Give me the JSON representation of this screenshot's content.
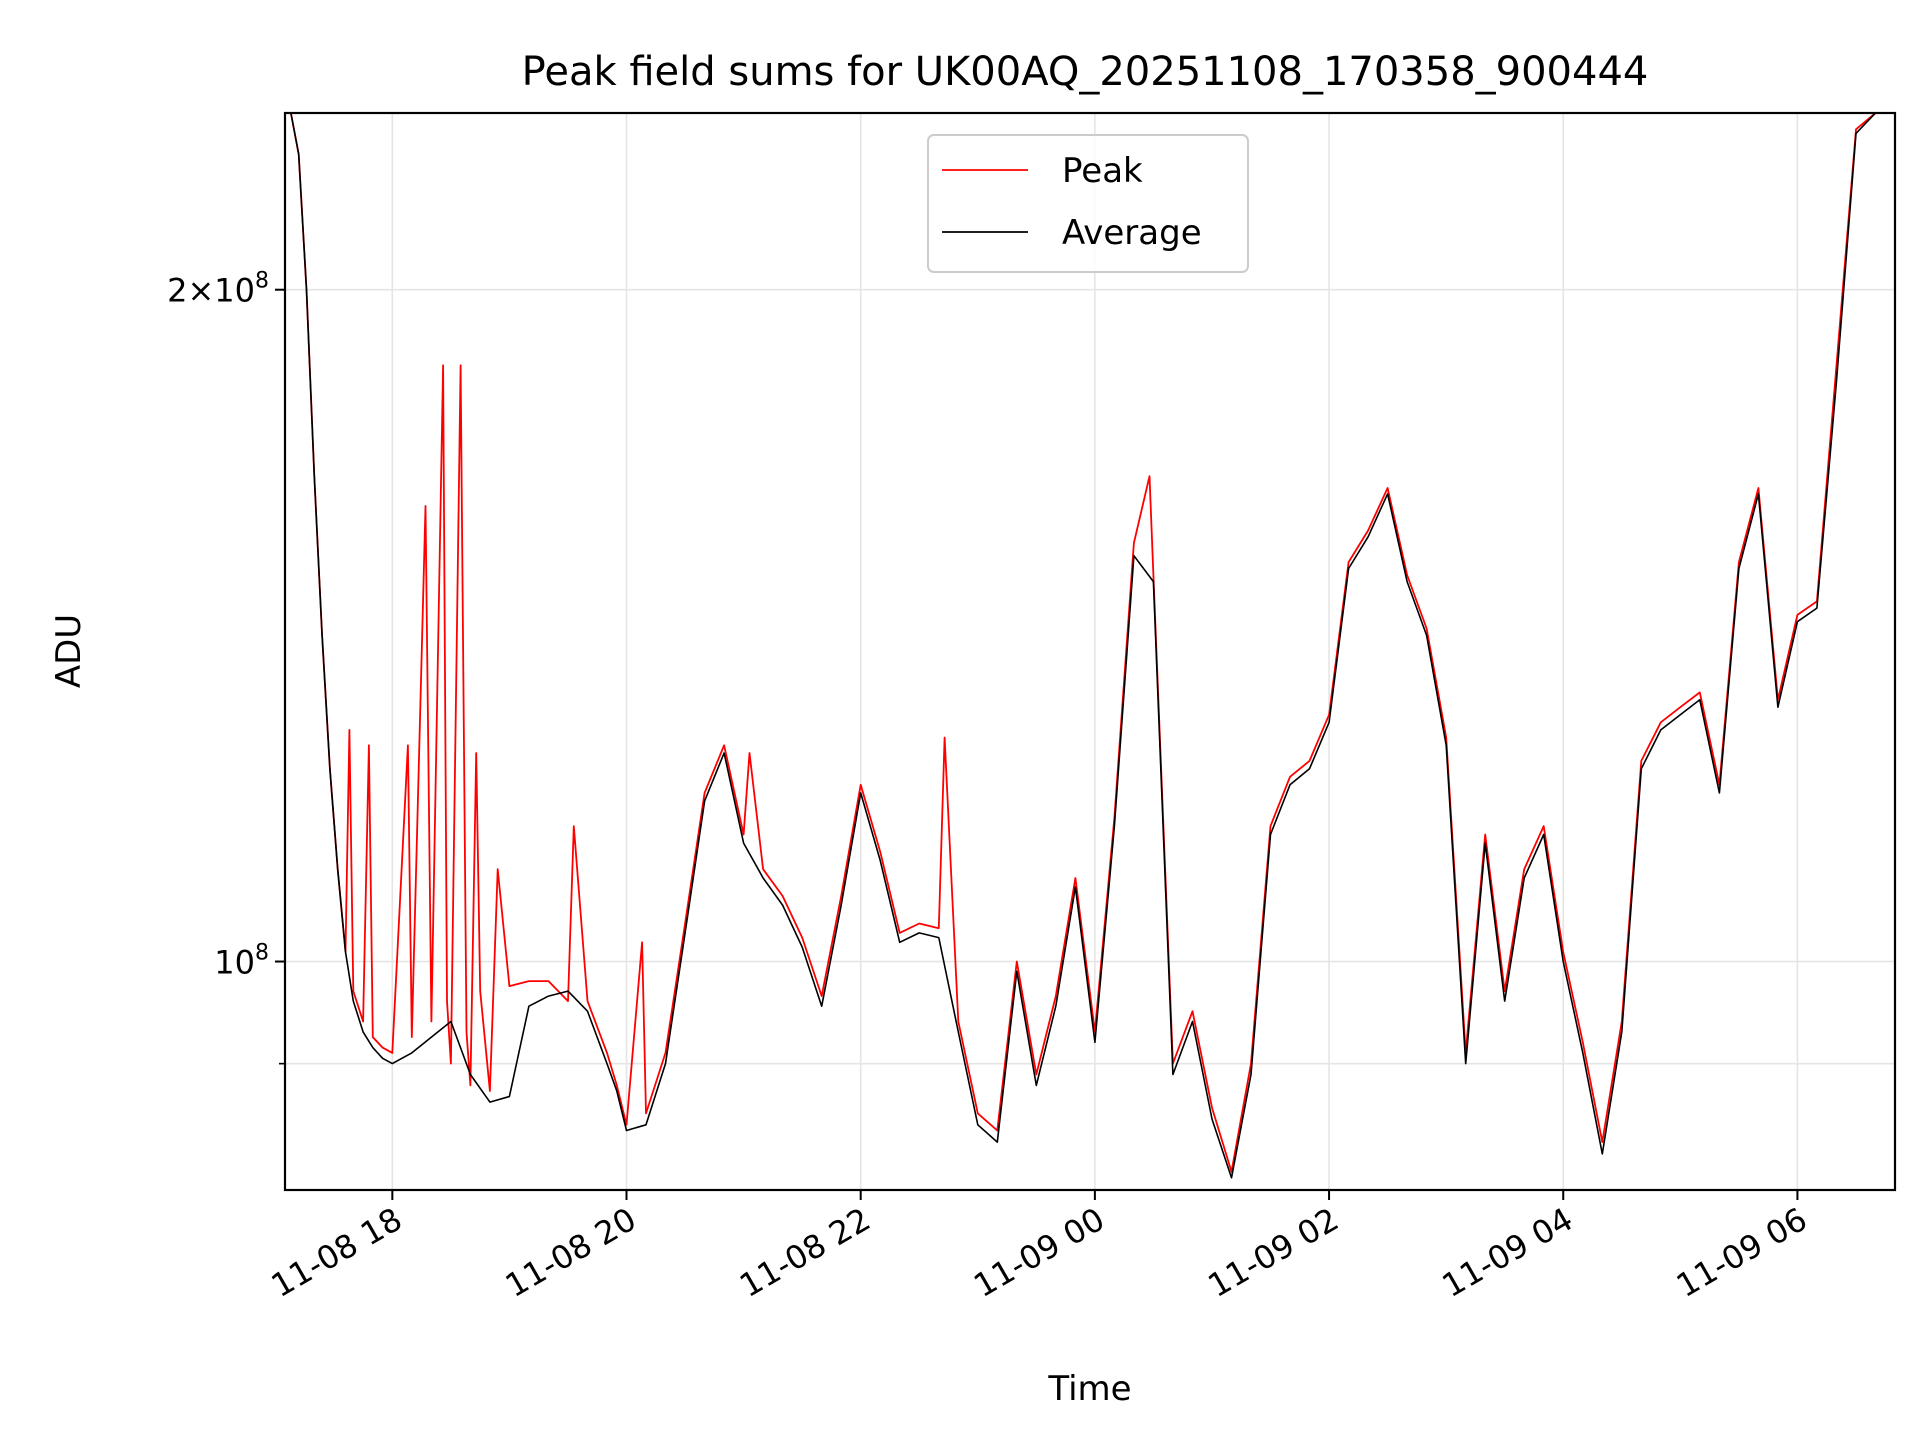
{
  "chart_data": {
    "type": "line",
    "title": "Peak field sums for UK00AQ_20251108_170358_900444",
    "xlabel": "Time",
    "ylabel": "ADU",
    "y_scale": "log",
    "x_range": [
      "2025-11-08 17:05",
      "2025-11-09 06:50"
    ],
    "ylim": [
      79000000,
      240000000
    ],
    "x_ticks": [
      {
        "value": "2025-11-08 18:00",
        "label": "11-08 18"
      },
      {
        "value": "2025-11-08 20:00",
        "label": "11-08 20"
      },
      {
        "value": "2025-11-08 22:00",
        "label": "11-08 22"
      },
      {
        "value": "2025-11-09 00:00",
        "label": "11-09 00"
      },
      {
        "value": "2025-11-09 02:00",
        "label": "11-09 02"
      },
      {
        "value": "2025-11-09 04:00",
        "label": "11-09 04"
      },
      {
        "value": "2025-11-09 06:00",
        "label": "11-09 06"
      }
    ],
    "y_ticks": [
      {
        "value": 100000000,
        "base": "10",
        "exp": "8",
        "coef": ""
      },
      {
        "value": 200000000,
        "base": "10",
        "exp": "8",
        "coef": "2×"
      }
    ],
    "y_minor_gridlines": [
      90000000
    ],
    "grid": true,
    "legend": {
      "position": "top-center",
      "entries": [
        "Peak",
        "Average"
      ]
    },
    "colors": {
      "Peak": "#ff0000",
      "Average": "#000000"
    },
    "series": [
      {
        "name": "Average",
        "x": [
          "2025-11-08 17:08",
          "2025-11-08 17:12",
          "2025-11-08 17:16",
          "2025-11-08 17:20",
          "2025-11-08 17:24",
          "2025-11-08 17:28",
          "2025-11-08 17:32",
          "2025-11-08 17:36",
          "2025-11-08 17:40",
          "2025-11-08 17:45",
          "2025-11-08 17:50",
          "2025-11-08 17:55",
          "2025-11-08 18:00",
          "2025-11-08 18:10",
          "2025-11-08 18:20",
          "2025-11-08 18:30",
          "2025-11-08 18:40",
          "2025-11-08 18:50",
          "2025-11-08 19:00",
          "2025-11-08 19:10",
          "2025-11-08 19:20",
          "2025-11-08 19:30",
          "2025-11-08 19:40",
          "2025-11-08 19:50",
          "2025-11-08 19:55",
          "2025-11-08 20:00",
          "2025-11-08 20:10",
          "2025-11-08 20:20",
          "2025-11-08 20:30",
          "2025-11-08 20:40",
          "2025-11-08 20:50",
          "2025-11-08 21:00",
          "2025-11-08 21:10",
          "2025-11-08 21:20",
          "2025-11-08 21:30",
          "2025-11-08 21:40",
          "2025-11-08 21:50",
          "2025-11-08 22:00",
          "2025-11-08 22:10",
          "2025-11-08 22:20",
          "2025-11-08 22:30",
          "2025-11-08 22:40",
          "2025-11-08 22:50",
          "2025-11-08 23:00",
          "2025-11-08 23:10",
          "2025-11-08 23:20",
          "2025-11-08 23:30",
          "2025-11-08 23:40",
          "2025-11-08 23:50",
          "2025-11-09 00:00",
          "2025-11-09 00:10",
          "2025-11-09 00:20",
          "2025-11-09 00:30",
          "2025-11-09 00:40",
          "2025-11-09 00:50",
          "2025-11-09 01:00",
          "2025-11-09 01:10",
          "2025-11-09 01:20",
          "2025-11-09 01:30",
          "2025-11-09 01:40",
          "2025-11-09 01:50",
          "2025-11-09 02:00",
          "2025-11-09 02:10",
          "2025-11-09 02:20",
          "2025-11-09 02:30",
          "2025-11-09 02:40",
          "2025-11-09 02:50",
          "2025-11-09 03:00",
          "2025-11-09 03:10",
          "2025-11-09 03:20",
          "2025-11-09 03:30",
          "2025-11-09 03:40",
          "2025-11-09 03:50",
          "2025-11-09 04:00",
          "2025-11-09 04:10",
          "2025-11-09 04:20",
          "2025-11-09 04:30",
          "2025-11-09 04:40",
          "2025-11-09 04:50",
          "2025-11-09 05:00",
          "2025-11-09 05:10",
          "2025-11-09 05:20",
          "2025-11-09 05:30",
          "2025-11-09 05:40",
          "2025-11-09 05:50",
          "2025-11-09 06:00",
          "2025-11-09 06:10",
          "2025-11-09 06:20",
          "2025-11-09 06:30",
          "2025-11-09 06:40",
          "2025-11-09 06:45"
        ],
        "y": [
          240000000,
          230000000,
          200000000,
          165000000,
          140000000,
          122000000,
          110000000,
          101000000,
          96000000,
          93000000,
          91500000,
          90500000,
          90000000,
          91000000,
          92500000,
          94000000,
          89000000,
          86500000,
          87000000,
          95500000,
          96500000,
          97000000,
          95000000,
          90000000,
          87500000,
          84000000,
          84500000,
          90000000,
          103000000,
          118000000,
          124000000,
          113000000,
          109000000,
          106000000,
          101500000,
          95500000,
          106000000,
          119000000,
          111000000,
          102000000,
          103000000,
          102500000,
          93000000,
          84500000,
          83000000,
          99000000,
          88000000,
          95500000,
          108000000,
          92000000,
          115000000,
          152000000,
          148000000,
          89000000,
          94000000,
          85000000,
          80000000,
          89000000,
          114000000,
          120000000,
          122000000,
          128000000,
          150000000,
          155000000,
          162000000,
          148000000,
          140000000,
          125000000,
          90000000,
          113000000,
          96000000,
          109000000,
          114000000,
          100000000,
          91000000,
          82000000,
          93000000,
          122000000,
          127000000,
          129000000,
          131000000,
          119000000,
          150000000,
          162000000,
          130000000,
          142000000,
          144000000,
          182000000,
          235000000,
          240000000,
          240000000
        ]
      },
      {
        "name": "Peak",
        "x": [
          "2025-11-08 17:08",
          "2025-11-08 17:12",
          "2025-11-08 17:16",
          "2025-11-08 17:20",
          "2025-11-08 17:24",
          "2025-11-08 17:28",
          "2025-11-08 17:32",
          "2025-11-08 17:36",
          "2025-11-08 17:38",
          "2025-11-08 17:40",
          "2025-11-08 17:45",
          "2025-11-08 17:48",
          "2025-11-08 17:50",
          "2025-11-08 17:55",
          "2025-11-08 18:00",
          "2025-11-08 18:08",
          "2025-11-08 18:10",
          "2025-11-08 18:17",
          "2025-11-08 18:20",
          "2025-11-08 18:26",
          "2025-11-08 18:28",
          "2025-11-08 18:30",
          "2025-11-08 18:35",
          "2025-11-08 18:38",
          "2025-11-08 18:40",
          "2025-11-08 18:43",
          "2025-11-08 18:45",
          "2025-11-08 18:50",
          "2025-11-08 18:54",
          "2025-11-08 19:00",
          "2025-11-08 19:10",
          "2025-11-08 19:20",
          "2025-11-08 19:30",
          "2025-11-08 19:33",
          "2025-11-08 19:40",
          "2025-11-08 19:50",
          "2025-11-08 19:55",
          "2025-11-08 20:00",
          "2025-11-08 20:08",
          "2025-11-08 20:10",
          "2025-11-08 20:20",
          "2025-11-08 20:30",
          "2025-11-08 20:40",
          "2025-11-08 20:50",
          "2025-11-08 21:00",
          "2025-11-08 21:03",
          "2025-11-08 21:10",
          "2025-11-08 21:20",
          "2025-11-08 21:30",
          "2025-11-08 21:40",
          "2025-11-08 21:50",
          "2025-11-08 22:00",
          "2025-11-08 22:10",
          "2025-11-08 22:20",
          "2025-11-08 22:30",
          "2025-11-08 22:40",
          "2025-11-08 22:43",
          "2025-11-08 22:50",
          "2025-11-08 23:00",
          "2025-11-08 23:10",
          "2025-11-08 23:20",
          "2025-11-08 23:30",
          "2025-11-08 23:40",
          "2025-11-08 23:50",
          "2025-11-09 00:00",
          "2025-11-09 00:10",
          "2025-11-09 00:20",
          "2025-11-09 00:28",
          "2025-11-09 00:30",
          "2025-11-09 00:40",
          "2025-11-09 00:50",
          "2025-11-09 01:00",
          "2025-11-09 01:10",
          "2025-11-09 01:20",
          "2025-11-09 01:30",
          "2025-11-09 01:40",
          "2025-11-09 01:50",
          "2025-11-09 02:00",
          "2025-11-09 02:10",
          "2025-11-09 02:20",
          "2025-11-09 02:30",
          "2025-11-09 02:40",
          "2025-11-09 02:50",
          "2025-11-09 03:00",
          "2025-11-09 03:10",
          "2025-11-09 03:20",
          "2025-11-09 03:30",
          "2025-11-09 03:40",
          "2025-11-09 03:50",
          "2025-11-09 04:00",
          "2025-11-09 04:10",
          "2025-11-09 04:20",
          "2025-11-09 04:30",
          "2025-11-09 04:40",
          "2025-11-09 04:50",
          "2025-11-09 05:00",
          "2025-11-09 05:10",
          "2025-11-09 05:20",
          "2025-11-09 05:30",
          "2025-11-09 05:40",
          "2025-11-09 05:50",
          "2025-11-09 06:00",
          "2025-11-09 06:10",
          "2025-11-09 06:20",
          "2025-11-09 06:30",
          "2025-11-09 06:40",
          "2025-11-09 06:45"
        ],
        "y": [
          240000000,
          230000000,
          200000000,
          165000000,
          140000000,
          122000000,
          110000000,
          101000000,
          127000000,
          97000000,
          94000000,
          125000000,
          92500000,
          91500000,
          91000000,
          125000000,
          92500000,
          160000000,
          94000000,
          185000000,
          96000000,
          90000000,
          185000000,
          93000000,
          88000000,
          124000000,
          97000000,
          87500000,
          110000000,
          97500000,
          98000000,
          98000000,
          96000000,
          115000000,
          96000000,
          91000000,
          88000000,
          84500000,
          102000000,
          85500000,
          91000000,
          104000000,
          119000000,
          125000000,
          114000000,
          124000000,
          110000000,
          107000000,
          102500000,
          96500000,
          107000000,
          120000000,
          112000000,
          103000000,
          104000000,
          103500000,
          126000000,
          94000000,
          85500000,
          84000000,
          100000000,
          89000000,
          96500000,
          109000000,
          93000000,
          116000000,
          154000000,
          165000000,
          149000000,
          90000000,
          95000000,
          86000000,
          80500000,
          90000000,
          115000000,
          121000000,
          123000000,
          129000000,
          151000000,
          156000000,
          163000000,
          149000000,
          141000000,
          126000000,
          91000000,
          114000000,
          97000000,
          110000000,
          115000000,
          101000000,
          92000000,
          83000000,
          94000000,
          123000000,
          128000000,
          130000000,
          132000000,
          120000000,
          151000000,
          163000000,
          131000000,
          143000000,
          145000000,
          185000000,
          236000000,
          240000000,
          240000000
        ]
      }
    ]
  }
}
